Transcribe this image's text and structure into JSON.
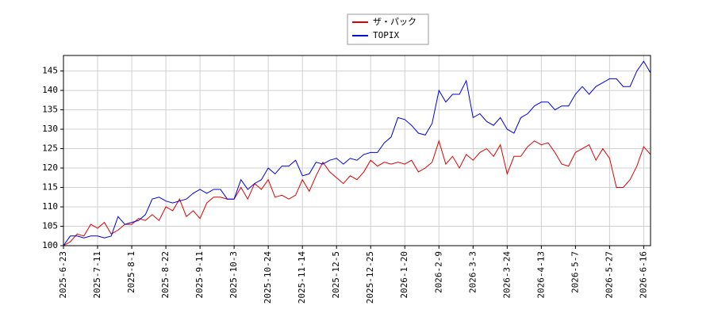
{
  "chart_data": {
    "type": "line",
    "categories": [
      "2025-6-23",
      null,
      null,
      null,
      null,
      "2025-7-11",
      null,
      null,
      null,
      null,
      "2025-8-1",
      null,
      null,
      null,
      null,
      "2025-8-22",
      null,
      null,
      null,
      null,
      "2025-9-11",
      null,
      null,
      null,
      null,
      "2025-10-3",
      null,
      null,
      null,
      null,
      "2025-10-24",
      null,
      null,
      null,
      null,
      "2025-11-14",
      null,
      null,
      null,
      null,
      "2025-12-5",
      null,
      null,
      null,
      null,
      "2025-12-25",
      null,
      null,
      null,
      null,
      "2026-1-20",
      null,
      null,
      null,
      null,
      "2026-2-9",
      null,
      null,
      null,
      null,
      "2026-3-3",
      null,
      null,
      null,
      null,
      "2026-3-24",
      null,
      null,
      null,
      null,
      "2026-4-13",
      null,
      null,
      null,
      null,
      "2026-5-7",
      null,
      null,
      null,
      null,
      "2026-5-27",
      null,
      null,
      null,
      null,
      "2026-6-16",
      null
    ],
    "series": [
      {
        "name": "ザ・パック",
        "color": "#dd0000",
        "values": [
          100,
          101,
          103,
          102.5,
          105.5,
          104.5,
          106,
          103,
          104,
          105.5,
          105.5,
          107,
          106.5,
          108,
          106.5,
          110,
          109,
          112,
          107.5,
          109,
          107,
          111,
          112.5,
          112.5,
          112,
          112,
          115,
          112,
          116,
          114.5,
          117,
          112.5,
          113,
          112,
          113,
          117,
          114,
          118,
          121.5,
          119,
          117.5,
          116,
          118,
          117,
          119,
          122,
          120.5,
          121.5,
          121,
          121.5,
          121,
          122,
          119,
          120,
          121.5,
          127,
          121,
          123,
          120,
          123.5,
          122,
          124,
          125,
          123,
          126,
          118.5,
          123,
          123,
          125.5,
          127,
          126,
          126.5,
          124,
          121,
          120.5,
          124,
          125,
          126,
          122,
          125,
          122.5,
          115,
          115,
          117,
          120.5,
          125.5,
          123.5
        ]
      },
      {
        "name": "TOPIX",
        "color": "#0000dd",
        "values": [
          100,
          102.5,
          102.5,
          102,
          102.5,
          102.5,
          102,
          102.5,
          107.5,
          105.5,
          106,
          106.5,
          108,
          112,
          112.5,
          111.5,
          111,
          111.5,
          112,
          113.5,
          114.5,
          113.5,
          114.5,
          114.5,
          112,
          112,
          117,
          114.5,
          116,
          117,
          120,
          118.5,
          120.5,
          120.5,
          122,
          118,
          118.5,
          121.5,
          121,
          122,
          122.5,
          121,
          122.5,
          122,
          123.5,
          124,
          124,
          126.5,
          128,
          133,
          132.5,
          131,
          129,
          128.5,
          131.5,
          140,
          137,
          139,
          139,
          142.5,
          133,
          134,
          132,
          131,
          133,
          130,
          129,
          133,
          134,
          136,
          137,
          137,
          135,
          136,
          136,
          139,
          141,
          139,
          141,
          142,
          143,
          143,
          141,
          141,
          145,
          147.5,
          144.5
        ]
      }
    ],
    "ylim": [
      100,
      149
    ],
    "yticks": [
      100,
      105,
      110,
      115,
      120,
      125,
      130,
      135,
      140,
      145
    ],
    "grid": true,
    "legend": "top"
  }
}
